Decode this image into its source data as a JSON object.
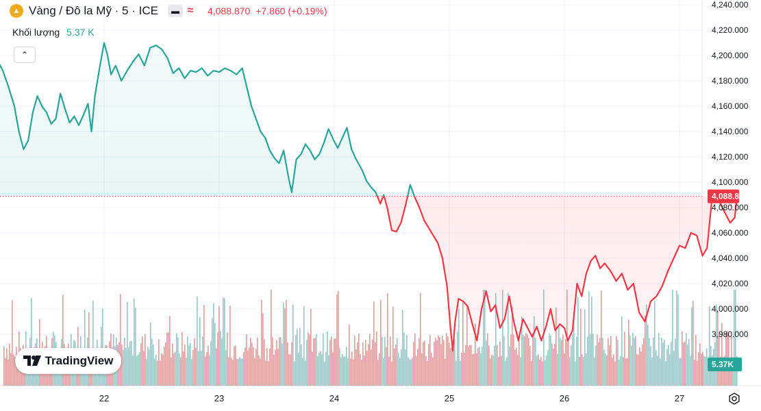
{
  "header": {
    "title": "Vàng / Đô la Mỹ · 5 · ICE",
    "price": "4,088.870",
    "change": "+7.860 (+0.19%)",
    "icons": [
      "gold-coin-icon",
      "minus-icon",
      "wave-icon"
    ]
  },
  "volume_legend": {
    "label": "Khối lượng",
    "value": "5.37 K"
  },
  "logo": {
    "text": "TradingView"
  },
  "colors": {
    "up": "#26a69a",
    "down": "#f23645",
    "grid": "#f0f3fa",
    "ref_line": "#f23645"
  },
  "chart_data": {
    "type": "area",
    "reference_price": 4088.87,
    "y_axis": {
      "ticks": [
        "4,240.000",
        "4,220.000",
        "4,200.000",
        "4,180.000",
        "4,160.000",
        "4,140.000",
        "4,120.000",
        "4,100.000",
        "4,080.000",
        "4,060.000",
        "4,040.000",
        "4,020.000",
        "4,000.000",
        "3,980.000"
      ],
      "range": [
        3962,
        4244
      ],
      "current_label": "4,088.870",
      "volume_label": "5.37K"
    },
    "x_axis": {
      "ticks": [
        "22",
        "23",
        "24",
        "25",
        "26",
        "27"
      ],
      "day_range": [
        21.0,
        27.2
      ]
    },
    "price_series": [
      [
        21.0,
        4210
      ],
      [
        21.03,
        4202
      ],
      [
        21.08,
        4195
      ],
      [
        21.12,
        4188
      ],
      [
        21.17,
        4175
      ],
      [
        21.22,
        4160
      ],
      [
        21.26,
        4140
      ],
      [
        21.3,
        4126
      ],
      [
        21.34,
        4133
      ],
      [
        21.38,
        4155
      ],
      [
        21.42,
        4168
      ],
      [
        21.46,
        4160
      ],
      [
        21.5,
        4155
      ],
      [
        21.54,
        4146
      ],
      [
        21.58,
        4150
      ],
      [
        21.62,
        4170
      ],
      [
        21.66,
        4158
      ],
      [
        21.7,
        4147
      ],
      [
        21.74,
        4152
      ],
      [
        21.78,
        4145
      ],
      [
        21.82,
        4153
      ],
      [
        21.86,
        4162
      ],
      [
        21.89,
        4140
      ],
      [
        21.92,
        4168
      ],
      [
        21.96,
        4190
      ],
      [
        22.0,
        4210
      ],
      [
        22.03,
        4200
      ],
      [
        22.06,
        4185
      ],
      [
        22.1,
        4192
      ],
      [
        22.15,
        4180
      ],
      [
        22.2,
        4188
      ],
      [
        22.25,
        4195
      ],
      [
        22.3,
        4201
      ],
      [
        22.35,
        4192
      ],
      [
        22.4,
        4206
      ],
      [
        22.45,
        4208
      ],
      [
        22.5,
        4205
      ],
      [
        22.55,
        4198
      ],
      [
        22.6,
        4186
      ],
      [
        22.65,
        4190
      ],
      [
        22.7,
        4182
      ],
      [
        22.75,
        4188
      ],
      [
        22.8,
        4187
      ],
      [
        22.85,
        4190
      ],
      [
        22.9,
        4184
      ],
      [
        22.95,
        4188
      ],
      [
        23.0,
        4187
      ],
      [
        23.05,
        4190
      ],
      [
        23.1,
        4188
      ],
      [
        23.15,
        4185
      ],
      [
        23.2,
        4190
      ],
      [
        23.24,
        4175
      ],
      [
        23.28,
        4160
      ],
      [
        23.32,
        4150
      ],
      [
        23.36,
        4140
      ],
      [
        23.4,
        4135
      ],
      [
        23.44,
        4125
      ],
      [
        23.48,
        4119
      ],
      [
        23.52,
        4115
      ],
      [
        23.56,
        4125
      ],
      [
        23.6,
        4105
      ],
      [
        23.63,
        4092
      ],
      [
        23.67,
        4118
      ],
      [
        23.71,
        4122
      ],
      [
        23.75,
        4130
      ],
      [
        23.79,
        4125
      ],
      [
        23.83,
        4118
      ],
      [
        23.87,
        4122
      ],
      [
        23.91,
        4131
      ],
      [
        23.95,
        4142
      ],
      [
        23.99,
        4134
      ],
      [
        24.03,
        4127
      ],
      [
        24.07,
        4135
      ],
      [
        24.11,
        4143
      ],
      [
        24.15,
        4126
      ],
      [
        24.19,
        4118
      ],
      [
        24.24,
        4110
      ],
      [
        24.28,
        4101
      ],
      [
        24.32,
        4096
      ],
      [
        24.36,
        4092
      ],
      [
        24.4,
        4083
      ],
      [
        24.43,
        4090
      ],
      [
        24.46,
        4080
      ],
      [
        24.5,
        4062
      ],
      [
        24.54,
        4061
      ],
      [
        24.58,
        4068
      ],
      [
        24.62,
        4082
      ],
      [
        24.66,
        4098
      ],
      [
        24.7,
        4088
      ],
      [
        24.74,
        4080
      ],
      [
        24.78,
        4070
      ],
      [
        24.82,
        4064
      ],
      [
        24.86,
        4058
      ],
      [
        24.9,
        4052
      ],
      [
        24.94,
        4040
      ],
      [
        24.98,
        4018
      ],
      [
        25.01,
        3985
      ],
      [
        25.03,
        3967
      ],
      [
        25.05,
        3990
      ],
      [
        25.08,
        4008
      ],
      [
        25.12,
        4006
      ],
      [
        25.16,
        4002
      ],
      [
        25.2,
        3988
      ],
      [
        25.24,
        3975
      ],
      [
        25.28,
        4000
      ],
      [
        25.32,
        4014
      ],
      [
        25.36,
        3998
      ],
      [
        25.4,
        4003
      ],
      [
        25.44,
        3985
      ],
      [
        25.48,
        3992
      ],
      [
        25.52,
        4010
      ],
      [
        25.56,
        3990
      ],
      [
        25.6,
        3975
      ],
      [
        25.64,
        3992
      ],
      [
        25.68,
        3985
      ],
      [
        25.72,
        3978
      ],
      [
        25.76,
        3986
      ],
      [
        25.8,
        3975
      ],
      [
        25.84,
        3986
      ],
      [
        25.88,
        4000
      ],
      [
        25.92,
        3983
      ],
      [
        25.96,
        3988
      ],
      [
        26.0,
        3985
      ],
      [
        26.03,
        3975
      ],
      [
        26.07,
        3983
      ],
      [
        26.11,
        4020
      ],
      [
        26.15,
        4010
      ],
      [
        26.19,
        4028
      ],
      [
        26.23,
        4038
      ],
      [
        26.27,
        4042
      ],
      [
        26.31,
        4032
      ],
      [
        26.35,
        4036
      ],
      [
        26.4,
        4030
      ],
      [
        26.45,
        4022
      ],
      [
        26.5,
        4028
      ],
      [
        26.55,
        4015
      ],
      [
        26.6,
        4020
      ],
      [
        26.65,
        3997
      ],
      [
        26.7,
        3990
      ],
      [
        26.75,
        4006
      ],
      [
        26.8,
        4010
      ],
      [
        26.85,
        4018
      ],
      [
        26.9,
        4030
      ],
      [
        26.95,
        4040
      ],
      [
        27.0,
        4050
      ],
      [
        27.05,
        4048
      ],
      [
        27.1,
        4060
      ],
      [
        27.15,
        4058
      ],
      [
        27.2,
        4042
      ],
      [
        27.24,
        4048
      ],
      [
        27.28,
        4085
      ],
      [
        27.32,
        4091
      ],
      [
        27.36,
        4082
      ],
      [
        27.4,
        4075
      ],
      [
        27.44,
        4068
      ],
      [
        27.48,
        4072
      ],
      [
        27.5,
        4088.87
      ]
    ],
    "volume": {
      "seed": 7,
      "note": "volume bars shown; exact values not labeled"
    }
  }
}
